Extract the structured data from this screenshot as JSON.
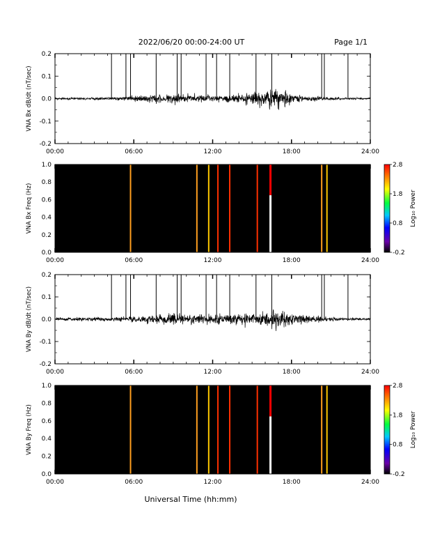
{
  "header": {
    "title": "2022/06/20  00:00-24:00 UT",
    "page": "Page 1/1"
  },
  "footer": {
    "xlabel": "Universal Time (hh:mm)"
  },
  "chart_data": [
    {
      "type": "line",
      "panel": "bx-timeseries",
      "ylabel": "VNA Bx dB/dt (nT/sec)",
      "xlim": [
        0,
        24
      ],
      "ylim": [
        -0.2,
        0.2
      ],
      "xticks": [
        "00:00",
        "06:00",
        "12:00",
        "18:00",
        "24:00"
      ],
      "yticks": [
        "-0.2",
        "-0.1",
        "0.0",
        "0.1",
        "0.2"
      ],
      "spikes_hours": [
        4.3,
        5.4,
        5.75,
        7.7,
        9.3,
        9.6,
        11.5,
        12.3,
        13.3,
        15.3,
        16.5,
        20.3,
        20.5,
        22.3
      ],
      "noise_envelope": {
        "x": [
          0,
          3,
          5,
          6,
          8,
          9,
          10,
          11,
          12,
          13,
          14,
          15,
          16,
          17,
          17.5,
          18,
          19,
          20,
          21,
          22,
          24
        ],
        "amplitude": [
          0.008,
          0.008,
          0.012,
          0.02,
          0.025,
          0.035,
          0.03,
          0.028,
          0.02,
          0.025,
          0.03,
          0.04,
          0.06,
          0.065,
          0.055,
          0.035,
          0.02,
          0.015,
          0.01,
          0.008,
          0.006
        ]
      }
    },
    {
      "type": "heatmap",
      "panel": "bx-spectrogram",
      "ylabel": "VNA Bx Freq (Hz)",
      "xlim": [
        0,
        24
      ],
      "ylim": [
        0,
        1
      ],
      "xticks": [
        "00:00",
        "06:00",
        "12:00",
        "18:00",
        "24:00"
      ],
      "yticks": [
        "0.0",
        "0.2",
        "0.4",
        "0.6",
        "0.8",
        "1.0"
      ],
      "background": "#000000",
      "lines": [
        {
          "x": 5.75,
          "color": "#ff9f1f"
        },
        {
          "x": 10.8,
          "color": "#ff9f1f"
        },
        {
          "x": 11.7,
          "color": "#ffc800"
        },
        {
          "x": 12.4,
          "color": "#ff3000"
        },
        {
          "x": 13.3,
          "color": "#ff3000"
        },
        {
          "x": 15.4,
          "color": "#ff3000"
        },
        {
          "x": 20.3,
          "color": "#ff9f1f"
        },
        {
          "x": 20.7,
          "color": "#ffc800"
        }
      ],
      "split_line": {
        "x": 16.4,
        "top_color": "#ff0000",
        "bottom_color": "#ffffff",
        "split_freq": 0.65
      },
      "colorbar": {
        "label": "Log₁₀ Power",
        "ticks": [
          "2.8",
          "1.8",
          "0.8",
          "-0.2"
        ],
        "range": [
          -0.2,
          2.8
        ]
      }
    },
    {
      "type": "line",
      "panel": "by-timeseries",
      "ylabel": "VNA By dB/dt (nT/sec)",
      "xlim": [
        0,
        24
      ],
      "ylim": [
        -0.2,
        0.2
      ],
      "xticks": [
        "00:00",
        "06:00",
        "12:00",
        "18:00",
        "24:00"
      ],
      "yticks": [
        "-0.2",
        "-0.1",
        "0.0",
        "0.1",
        "0.2"
      ],
      "spikes_hours": [
        4.3,
        5.4,
        5.75,
        7.7,
        9.3,
        9.6,
        11.5,
        12.3,
        13.3,
        15.3,
        16.5,
        20.3,
        20.5,
        22.3
      ],
      "noise_envelope": {
        "x": [
          0,
          3,
          5,
          6,
          8,
          9,
          10,
          11,
          12,
          13,
          14,
          15,
          16,
          17,
          17.5,
          18,
          19,
          20,
          21,
          22,
          24
        ],
        "amplitude": [
          0.01,
          0.012,
          0.018,
          0.02,
          0.03,
          0.04,
          0.04,
          0.035,
          0.03,
          0.035,
          0.04,
          0.045,
          0.055,
          0.06,
          0.06,
          0.04,
          0.03,
          0.02,
          0.015,
          0.01,
          0.008
        ]
      }
    },
    {
      "type": "heatmap",
      "panel": "by-spectrogram",
      "ylabel": "VNA By Freq (Hz)",
      "xlim": [
        0,
        24
      ],
      "ylim": [
        0,
        1
      ],
      "xticks": [
        "00:00",
        "06:00",
        "12:00",
        "18:00",
        "24:00"
      ],
      "yticks": [
        "0.0",
        "0.2",
        "0.4",
        "0.6",
        "0.8",
        "1.0"
      ],
      "background": "#000000",
      "lines": [
        {
          "x": 5.75,
          "color": "#ff9f1f"
        },
        {
          "x": 10.8,
          "color": "#ff9f1f"
        },
        {
          "x": 11.7,
          "color": "#ffc800"
        },
        {
          "x": 12.4,
          "color": "#ff3000"
        },
        {
          "x": 13.3,
          "color": "#ff3000"
        },
        {
          "x": 15.4,
          "color": "#ff3000"
        },
        {
          "x": 20.3,
          "color": "#ff9f1f"
        },
        {
          "x": 20.7,
          "color": "#ffc800"
        }
      ],
      "split_line": {
        "x": 16.4,
        "top_color": "#ff0000",
        "bottom_color": "#ffffff",
        "split_freq": 0.65
      },
      "colorbar": {
        "label": "Log₁₀ Power",
        "ticks": [
          "2.8",
          "1.8",
          "0.8",
          "-0.2"
        ],
        "range": [
          -0.2,
          2.8
        ]
      }
    }
  ]
}
